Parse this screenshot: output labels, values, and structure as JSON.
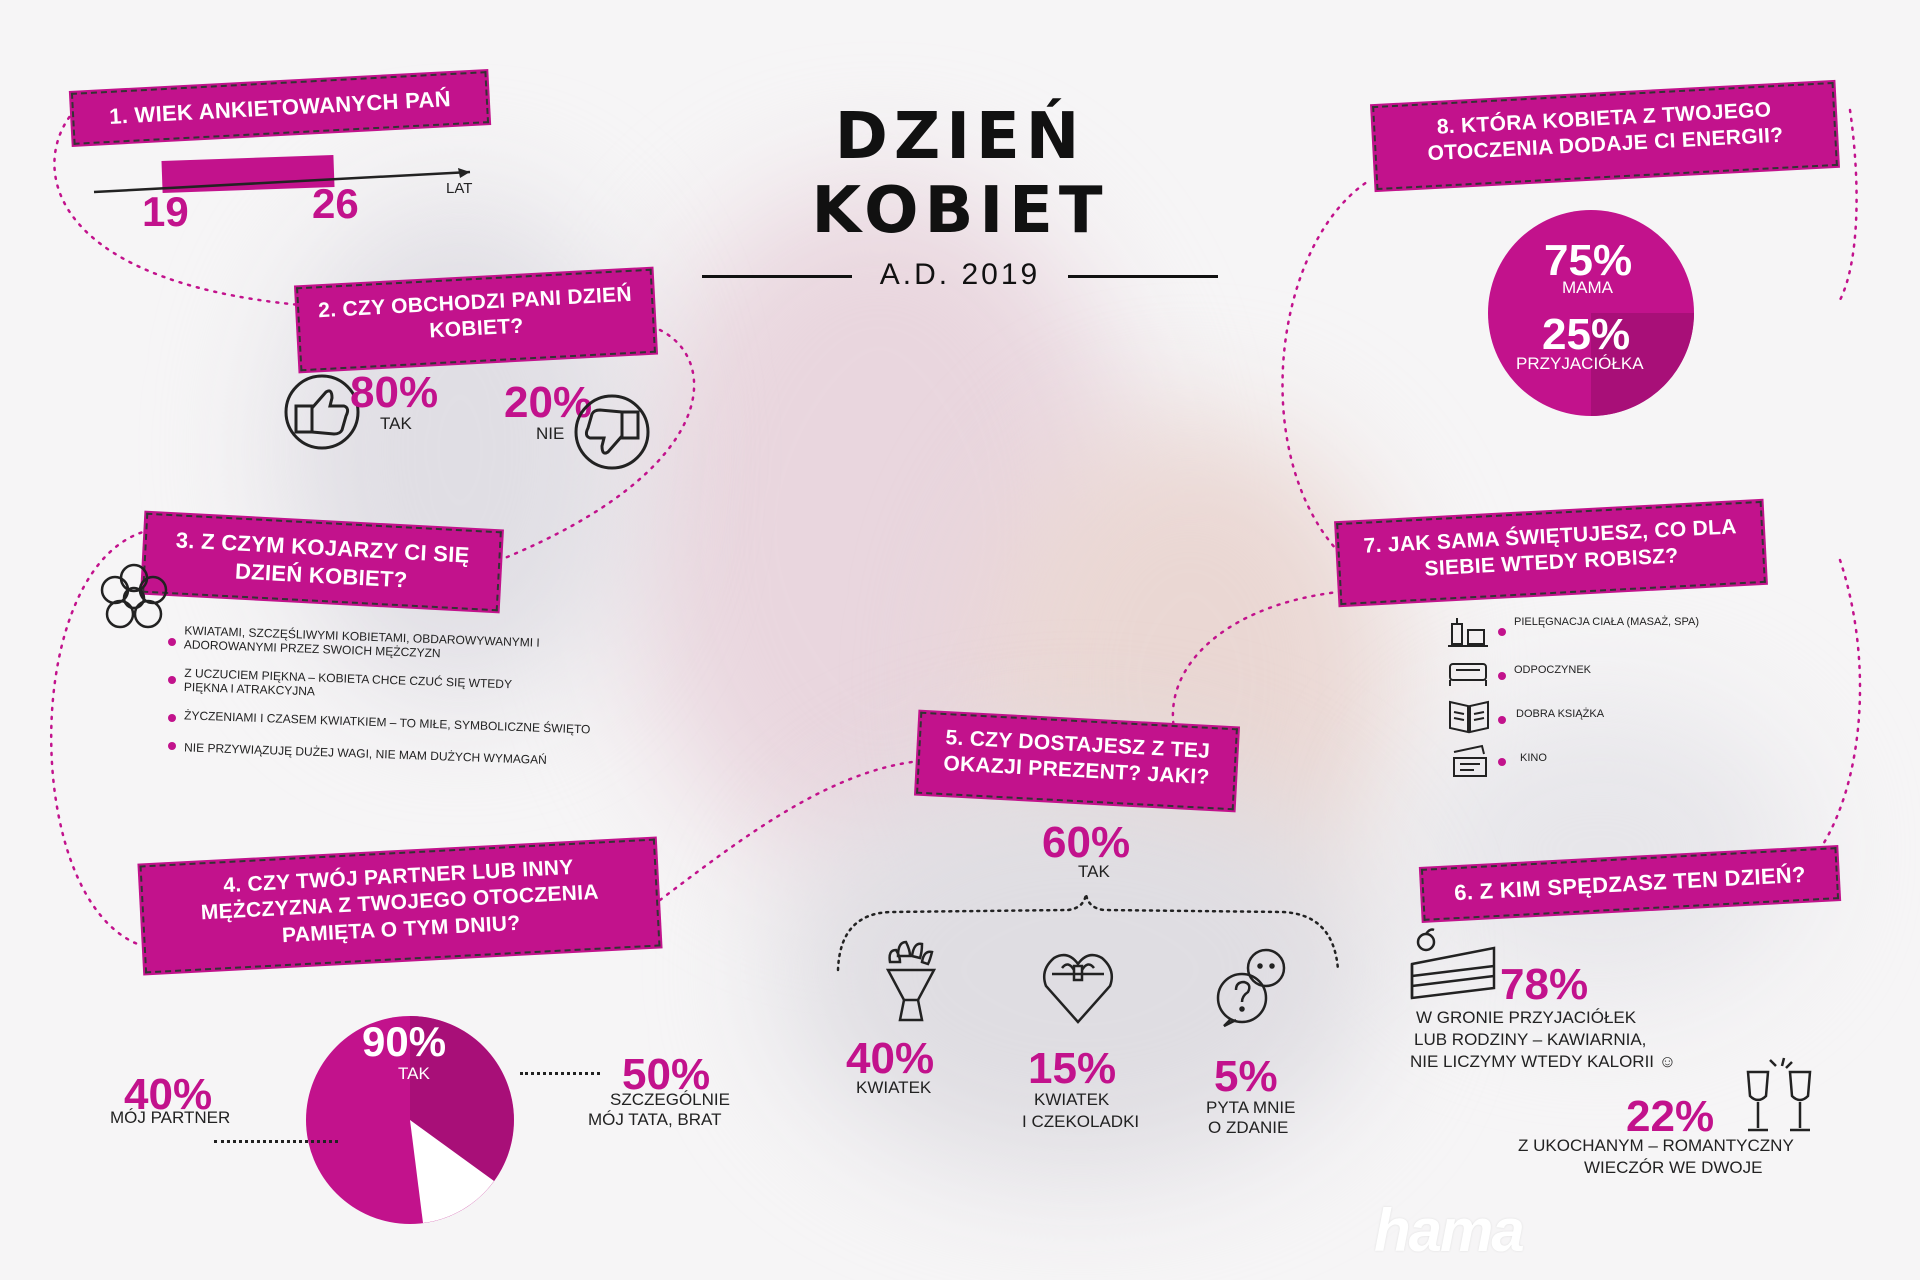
{
  "header": {
    "title": "DZIEŃ KOBIET",
    "subtitle": "A.D. 2019"
  },
  "q1": {
    "title": "1. WIEK ANKIETOWANYCH PAŃ",
    "from": "19",
    "to": "26",
    "unit": "LAT"
  },
  "q2": {
    "title": "2. CZY OBCHODZI PANI DZIEŃ KOBIET?",
    "yes_pct": "80%",
    "yes_label": "TAK",
    "no_pct": "20%",
    "no_label": "NIE"
  },
  "q3": {
    "title": "3. Z CZYM KOJARZY CI SIĘ DZIEŃ KOBIET?",
    "items": [
      "KWIATAMI, SZCZĘŚLIWYMI KOBIETAMI, OBDAROWYWANYMI I ADOROWANYMI PRZEZ SWOICH MĘŻCZYZN",
      "Z UCZUCIEM PIĘKNA – KOBIETA CHCE CZUĆ SIĘ WTEDY PIĘKNA I ATRAKCYJNA",
      "ŻYCZENIAMI I CZASEM KWIATKIEM – TO MIŁE, SYMBOLICZNE ŚWIĘTO",
      "NIE PRZYWIĄZUJĘ DUŻEJ WAGI, NIE MAM DUŻYCH WYMAGAŃ"
    ]
  },
  "q4": {
    "title": "4. CZY TWÓJ PARTNER LUB INNY MĘŻCZYZNA Z TWOJEGO OTOCZENIA PAMIĘTA O TYM DNIU?",
    "center_pct": "90%",
    "center_label": "TAK",
    "left_pct": "40%",
    "left_label": "MÓJ PARTNER",
    "right_pct": "50%",
    "right_label1": "SZCZEGÓLNIE",
    "right_label2": "MÓJ TATA, BRAT"
  },
  "q5": {
    "title": "5. CZY DOSTAJESZ Z TEJ OKAZJI PREZENT? JAKI?",
    "yes_pct": "60%",
    "yes_label": "TAK",
    "options": [
      {
        "pct": "40%",
        "label1": "KWIATEK",
        "label2": ""
      },
      {
        "pct": "15%",
        "label1": "KWIATEK",
        "label2": "I CZEKOLADKI"
      },
      {
        "pct": "5%",
        "label1": "PYTA MNIE",
        "label2": "O ZDANIE"
      }
    ]
  },
  "q6": {
    "title": "6. Z KIM SPĘDZASZ TEN DZIEŃ?",
    "a_pct": "78%",
    "a_label": [
      "W GRONIE PRZYJACIÓŁEK",
      "LUB RODZINY – KAWIARNIA,",
      "NIE LICZYMY WTEDY KALORII ☺"
    ],
    "b_pct": "22%",
    "b_label": [
      "Z UKOCHANYM – ROMANTYCZNY",
      "WIECZÓR WE DWOJE"
    ]
  },
  "q7": {
    "title": "7. JAK SAMA ŚWIĘTUJESZ, CO DLA SIEBIE WTEDY ROBISZ?",
    "items": [
      "PIELĘGNACJA CIAŁA (MASAŻ, SPA)",
      "ODPOCZYNEK",
      "DOBRA KSIĄŻKA",
      "KINO"
    ]
  },
  "q8": {
    "title": "8. KTÓRA KOBIETA Z TWOJEGO OTOCZENIA DODAJE CI ENERGII?",
    "a_pct": "75%",
    "a_label": "MAMA",
    "b_pct": "25%",
    "b_label": "PRZYJACIÓŁKA"
  },
  "brand": {
    "logo": "hama"
  },
  "colors": {
    "accent": "#c2128c",
    "accent_dark": "#a80f78",
    "text": "#111111"
  }
}
